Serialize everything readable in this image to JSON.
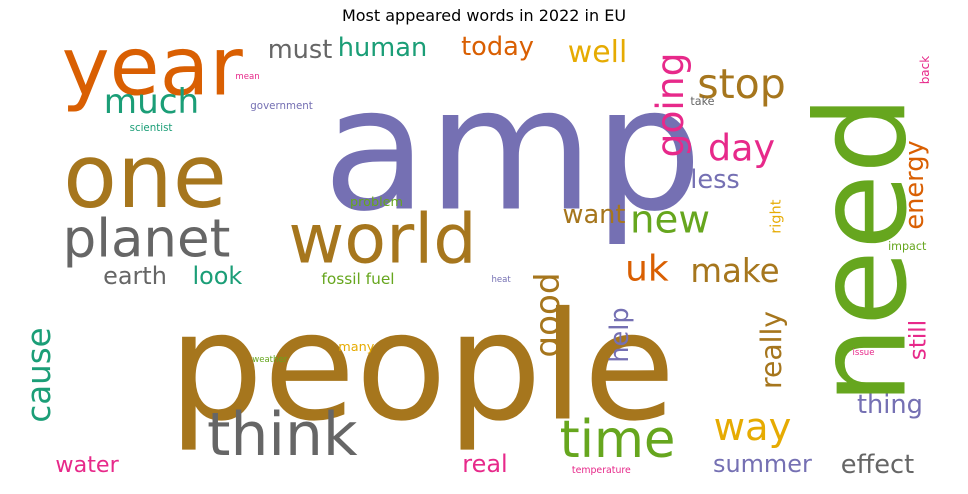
{
  "chart_data": {
    "type": "wordcloud",
    "title": "Most appeared words in 2022 in EU",
    "palette": {
      "orange": "#d95f02",
      "purple": "#7570b3",
      "pink": "#e7298a",
      "green": "#66a61e",
      "teal": "#1b9e77",
      "gold": "#e6ab02",
      "brown": "#a6761d",
      "gray": "#666666"
    },
    "words": [
      {
        "text": "people",
        "color": "brown",
        "vertical": false
      },
      {
        "text": "amp",
        "color": "purple",
        "vertical": false
      },
      {
        "text": "need",
        "color": "green",
        "vertical": true
      },
      {
        "text": "one",
        "color": "brown",
        "vertical": false
      },
      {
        "text": "year",
        "color": "orange",
        "vertical": false
      },
      {
        "text": "world",
        "color": "brown",
        "vertical": false
      },
      {
        "text": "think",
        "color": "gray",
        "vertical": false
      },
      {
        "text": "time",
        "color": "green",
        "vertical": false
      },
      {
        "text": "planet",
        "color": "gray",
        "vertical": false
      },
      {
        "text": "new",
        "color": "green",
        "vertical": false
      },
      {
        "text": "much",
        "color": "teal",
        "vertical": false
      },
      {
        "text": "going",
        "color": "pink",
        "vertical": true
      },
      {
        "text": "day",
        "color": "pink",
        "vertical": false
      },
      {
        "text": "stop",
        "color": "brown",
        "vertical": false
      },
      {
        "text": "cause",
        "color": "teal",
        "vertical": true
      },
      {
        "text": "good",
        "color": "brown",
        "vertical": true
      },
      {
        "text": "way",
        "color": "gold",
        "vertical": false
      },
      {
        "text": "make",
        "color": "brown",
        "vertical": false
      },
      {
        "text": "uk",
        "color": "orange",
        "vertical": false
      },
      {
        "text": "human",
        "color": "teal",
        "vertical": false
      },
      {
        "text": "must",
        "color": "gray",
        "vertical": false
      },
      {
        "text": "today",
        "color": "orange",
        "vertical": false
      },
      {
        "text": "well",
        "color": "gold",
        "vertical": false
      },
      {
        "text": "less",
        "color": "purple",
        "vertical": false
      },
      {
        "text": "want",
        "color": "brown",
        "vertical": false
      },
      {
        "text": "energy",
        "color": "orange",
        "vertical": true
      },
      {
        "text": "earth",
        "color": "gray",
        "vertical": false
      },
      {
        "text": "look",
        "color": "teal",
        "vertical": false
      },
      {
        "text": "help",
        "color": "purple",
        "vertical": true
      },
      {
        "text": "really",
        "color": "brown",
        "vertical": true
      },
      {
        "text": "still",
        "color": "pink",
        "vertical": true
      },
      {
        "text": "thing",
        "color": "purple",
        "vertical": false
      },
      {
        "text": "water",
        "color": "pink",
        "vertical": false
      },
      {
        "text": "real",
        "color": "pink",
        "vertical": false
      },
      {
        "text": "summer",
        "color": "purple",
        "vertical": false
      },
      {
        "text": "effect",
        "color": "gray",
        "vertical": false
      },
      {
        "text": "fossil fuel",
        "color": "green",
        "vertical": false
      },
      {
        "text": "problem",
        "color": "green",
        "vertical": false
      },
      {
        "text": "take",
        "color": "gray",
        "vertical": false
      },
      {
        "text": "impact",
        "color": "green",
        "vertical": false
      },
      {
        "text": "right",
        "color": "gold",
        "vertical": true
      },
      {
        "text": "many",
        "color": "gold",
        "vertical": false
      },
      {
        "text": "back",
        "color": "pink",
        "vertical": true
      },
      {
        "text": "government",
        "color": "purple",
        "vertical": false
      },
      {
        "text": "scientist",
        "color": "teal",
        "vertical": false
      },
      {
        "text": "mean",
        "color": "pink",
        "vertical": false
      },
      {
        "text": "heat",
        "color": "purple",
        "vertical": false
      },
      {
        "text": "weather",
        "color": "green",
        "vertical": false
      },
      {
        "text": "issue",
        "color": "pink",
        "vertical": false
      },
      {
        "text": "temperature",
        "color": "pink",
        "vertical": false
      }
    ]
  }
}
